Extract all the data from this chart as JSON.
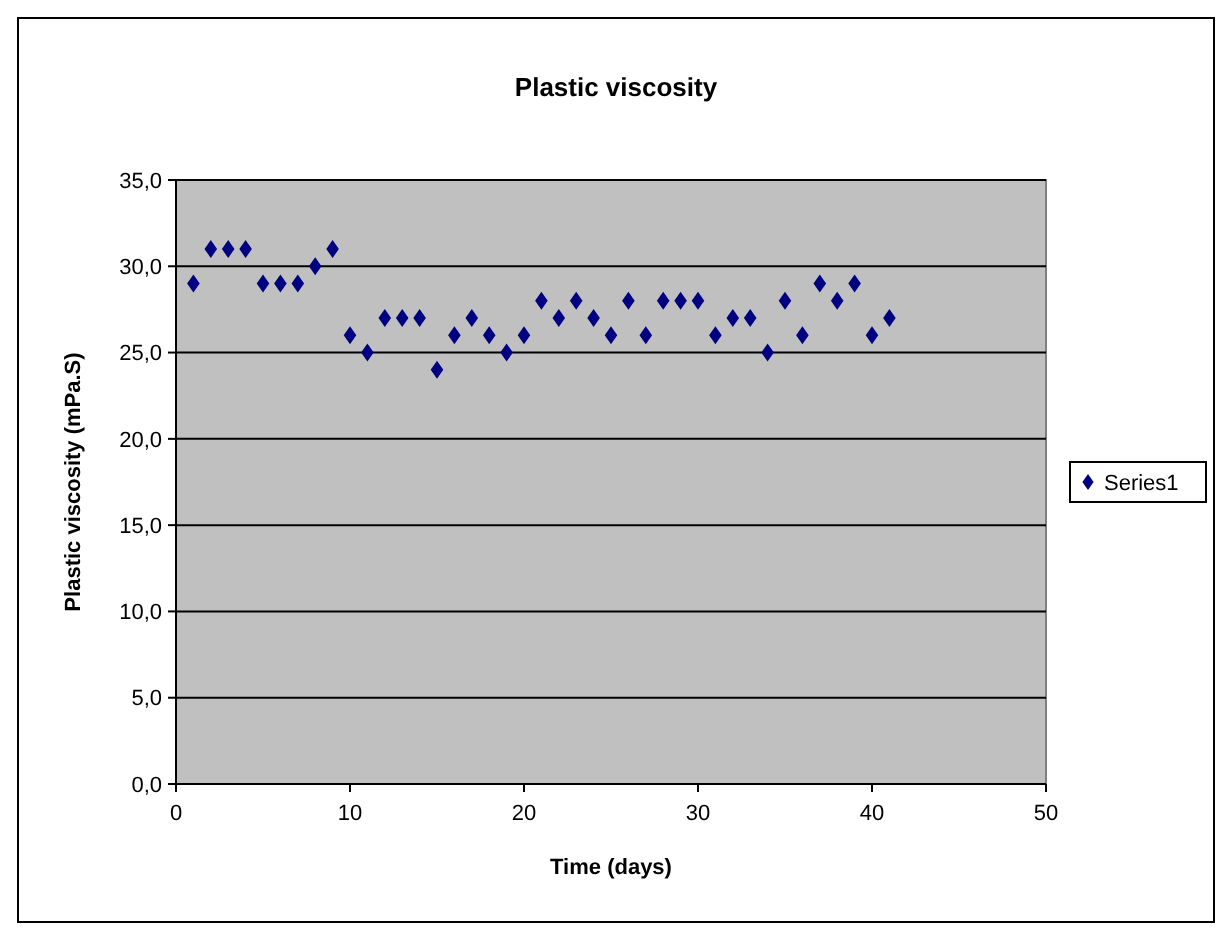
{
  "chart_data": {
    "type": "scatter",
    "title": "Plastic viscosity",
    "xlabel": "Time (days)",
    "ylabel": "Plastic viscosity (mPa.S)",
    "x": [
      1,
      2,
      3,
      4,
      5,
      6,
      7,
      8,
      9,
      10,
      11,
      12,
      13,
      14,
      15,
      16,
      17,
      18,
      19,
      20,
      21,
      22,
      23,
      24,
      25,
      26,
      27,
      28,
      29,
      30,
      31,
      32,
      33,
      34,
      35,
      36,
      37,
      38,
      39,
      40,
      41
    ],
    "series": [
      {
        "name": "Series1",
        "color": "#000080",
        "values": [
          29,
          31,
          31,
          31,
          29,
          29,
          29,
          30,
          31,
          26,
          25,
          27,
          27,
          27,
          24,
          26,
          27,
          26,
          25,
          26,
          28,
          27,
          28,
          27,
          26,
          28,
          26,
          28,
          28,
          28,
          26,
          27,
          27,
          25,
          28,
          26,
          29,
          28,
          29,
          26,
          27
        ]
      }
    ],
    "xlim": [
      0,
      50
    ],
    "xticks": [
      0,
      10,
      20,
      30,
      40,
      50
    ],
    "ylim": [
      0,
      35
    ],
    "yticks": [
      {
        "value": 0,
        "label": "0,0"
      },
      {
        "value": 5,
        "label": "5,0"
      },
      {
        "value": 10,
        "label": "10,0"
      },
      {
        "value": 15,
        "label": "15,0"
      },
      {
        "value": 20,
        "label": "20,0"
      },
      {
        "value": 25,
        "label": "25,0"
      },
      {
        "value": 30,
        "label": "30,0"
      },
      {
        "value": 35,
        "label": "35,0"
      }
    ],
    "grid": "y",
    "legend": "right",
    "marker": "diamond"
  }
}
